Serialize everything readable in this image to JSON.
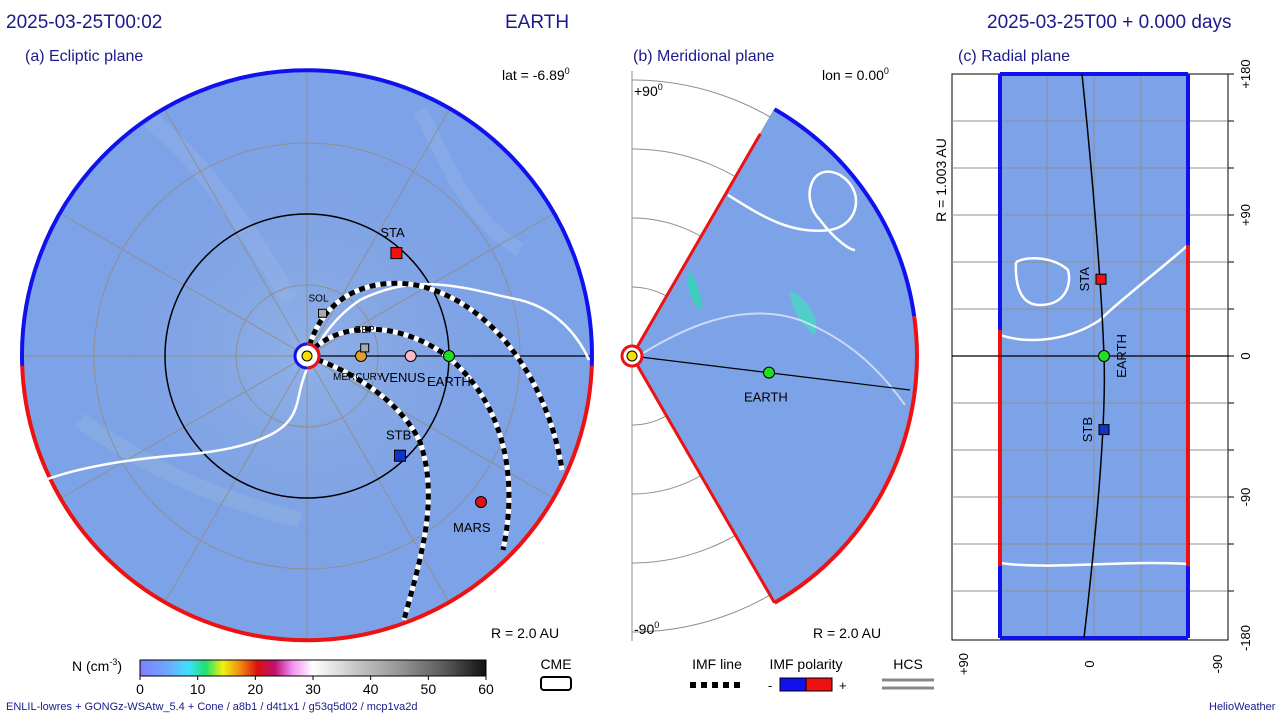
{
  "header": {
    "timestamp": "2025-03-25T00:02",
    "target": "EARTH",
    "run_time": "2025-03-25T00 +  0.000 days"
  },
  "panels": {
    "ecliptic": {
      "title": "(a) Ecliptic plane",
      "lat_label": "lat = -6.89",
      "lat_exp": "0",
      "radius_label": "R = 2.0 AU"
    },
    "meridional": {
      "title": "(b) Meridional plane",
      "lon_label": "lon = 0.00",
      "lon_exp": "0",
      "radius_label": "R = 2.0 AU",
      "top_label": "+90",
      "bottom_label": "-90",
      "deg_exp": "0"
    },
    "radial": {
      "title": "(c) Radial plane",
      "radius_label": "R = 1.003 AU"
    }
  },
  "colorbar": {
    "label": "N (cm",
    "label_exp": "-3",
    "label_close": ")",
    "ticks": [
      "0",
      "10",
      "20",
      "30",
      "40",
      "50",
      "60"
    ]
  },
  "legend": {
    "cme": "CME",
    "imf_line": "IMF line",
    "imf_polarity": "IMF polarity",
    "polarity_minus": "-",
    "polarity_plus": "+",
    "hcs": "HCS"
  },
  "footer": {
    "model": "ENLIL-lowres + GONGz-WSAtw_5.4 + Cone / a8b1 / d4t1x1 / g53q5d02 / mcp1va2d",
    "credit": "HelioWeather"
  },
  "colors": {
    "title": "#1a1a8c",
    "background_density": "#7aa0e6",
    "positive_polarity": "#ee1111",
    "negative_polarity": "#1111ee",
    "earth": "#22dd22",
    "sta": "#ee1111",
    "stb": "#1133cc",
    "mars": "#dd1111"
  },
  "chart_data": [
    {
      "type": "heatmap",
      "panel": "ecliptic",
      "quantity": "solar wind density N (cm^-3)",
      "color_range": [
        0,
        60
      ],
      "bodies": [
        {
          "name": "EARTH",
          "r_au": 1.0,
          "lon_deg": 0,
          "color": "#22dd22"
        },
        {
          "name": "STA",
          "r_au": 0.96,
          "lon_deg": 49,
          "color": "#ee1111"
        },
        {
          "name": "STB",
          "r_au": 0.96,
          "lon_deg": -47,
          "color": "#1133cc"
        },
        {
          "name": "MARS",
          "r_au": 1.6,
          "lon_deg": -40,
          "color": "#dd1111"
        },
        {
          "name": "VENUS",
          "r_au": 0.73,
          "lon_deg": 0,
          "color": "#f7bccb"
        },
        {
          "name": "MERCURY",
          "r_au": 0.38,
          "lon_deg": 0,
          "color": "#e0a030"
        },
        {
          "name": "BEP",
          "r_au": 0.41,
          "lon_deg": 8,
          "color": "#aaaaaa"
        },
        {
          "name": "SOL",
          "r_au": 0.32,
          "lon_deg": 70,
          "color": "#aaaaaa"
        }
      ]
    },
    {
      "type": "heatmap",
      "panel": "meridional",
      "quantity": "solar wind density N (cm^-3)",
      "lat_range": [
        -60,
        60
      ],
      "bodies": [
        {
          "name": "EARTH",
          "r_au": 1.0,
          "lat_deg": -6.89,
          "color": "#22dd22"
        }
      ]
    },
    {
      "type": "heatmap",
      "panel": "radial",
      "quantity": "solar wind density N (cm^-3)",
      "r_au": 1.003,
      "lat_range": [
        -60,
        60
      ],
      "lon_ticks": [
        "+180",
        "+90",
        "0",
        "-90",
        "-180"
      ],
      "lat_ticks": [
        "+90",
        "0",
        "-90"
      ],
      "bodies": [
        {
          "name": "STA",
          "lon_deg": 49,
          "color": "#ee1111"
        },
        {
          "name": "EARTH",
          "lon_deg": 0,
          "color": "#22dd22"
        },
        {
          "name": "STB",
          "lon_deg": -47,
          "color": "#1133cc"
        }
      ]
    }
  ]
}
